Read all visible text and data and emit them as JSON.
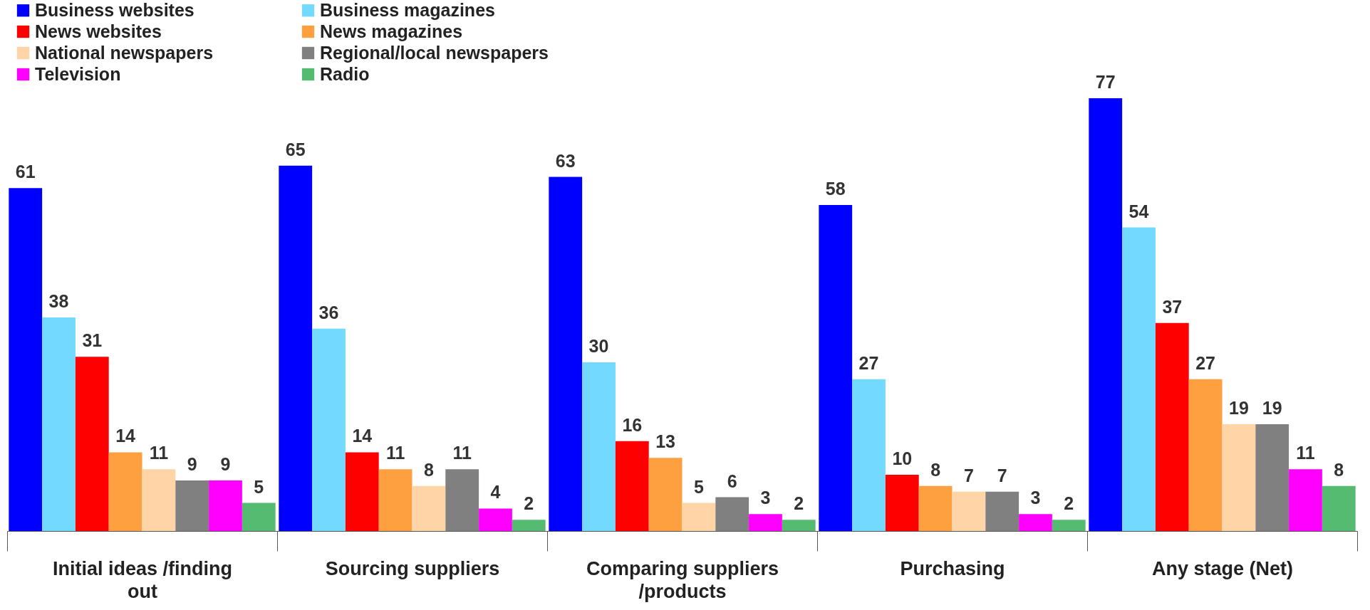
{
  "chart_data": {
    "type": "bar",
    "categories": [
      "Initial ideas /finding out",
      "Sourcing suppliers",
      "Comparing suppliers /products",
      "Purchasing",
      "Any stage (Net)"
    ],
    "series": [
      {
        "name": "Business websites",
        "color": "#0000ff",
        "values": [
          61,
          65,
          63,
          58,
          77
        ]
      },
      {
        "name": "Business magazines",
        "color": "#73d9ff",
        "values": [
          38,
          36,
          30,
          27,
          54
        ]
      },
      {
        "name": "News websites",
        "color": "#ff0000",
        "values": [
          31,
          14,
          16,
          10,
          37
        ]
      },
      {
        "name": "News magazines",
        "color": "#ffa040",
        "values": [
          14,
          11,
          13,
          8,
          27
        ]
      },
      {
        "name": "National newspapers",
        "color": "#ffd5a8",
        "values": [
          11,
          8,
          5,
          7,
          19
        ]
      },
      {
        "name": "Regional/local newspapers",
        "color": "#808080",
        "values": [
          9,
          11,
          6,
          7,
          19
        ]
      },
      {
        "name": "Television",
        "color": "#ff00ff",
        "values": [
          9,
          4,
          3,
          3,
          11
        ]
      },
      {
        "name": "Radio",
        "color": "#55bb70",
        "values": [
          5,
          2,
          2,
          2,
          8
        ]
      }
    ],
    "data_labels": true,
    "legend": "top left",
    "grid": false
  }
}
